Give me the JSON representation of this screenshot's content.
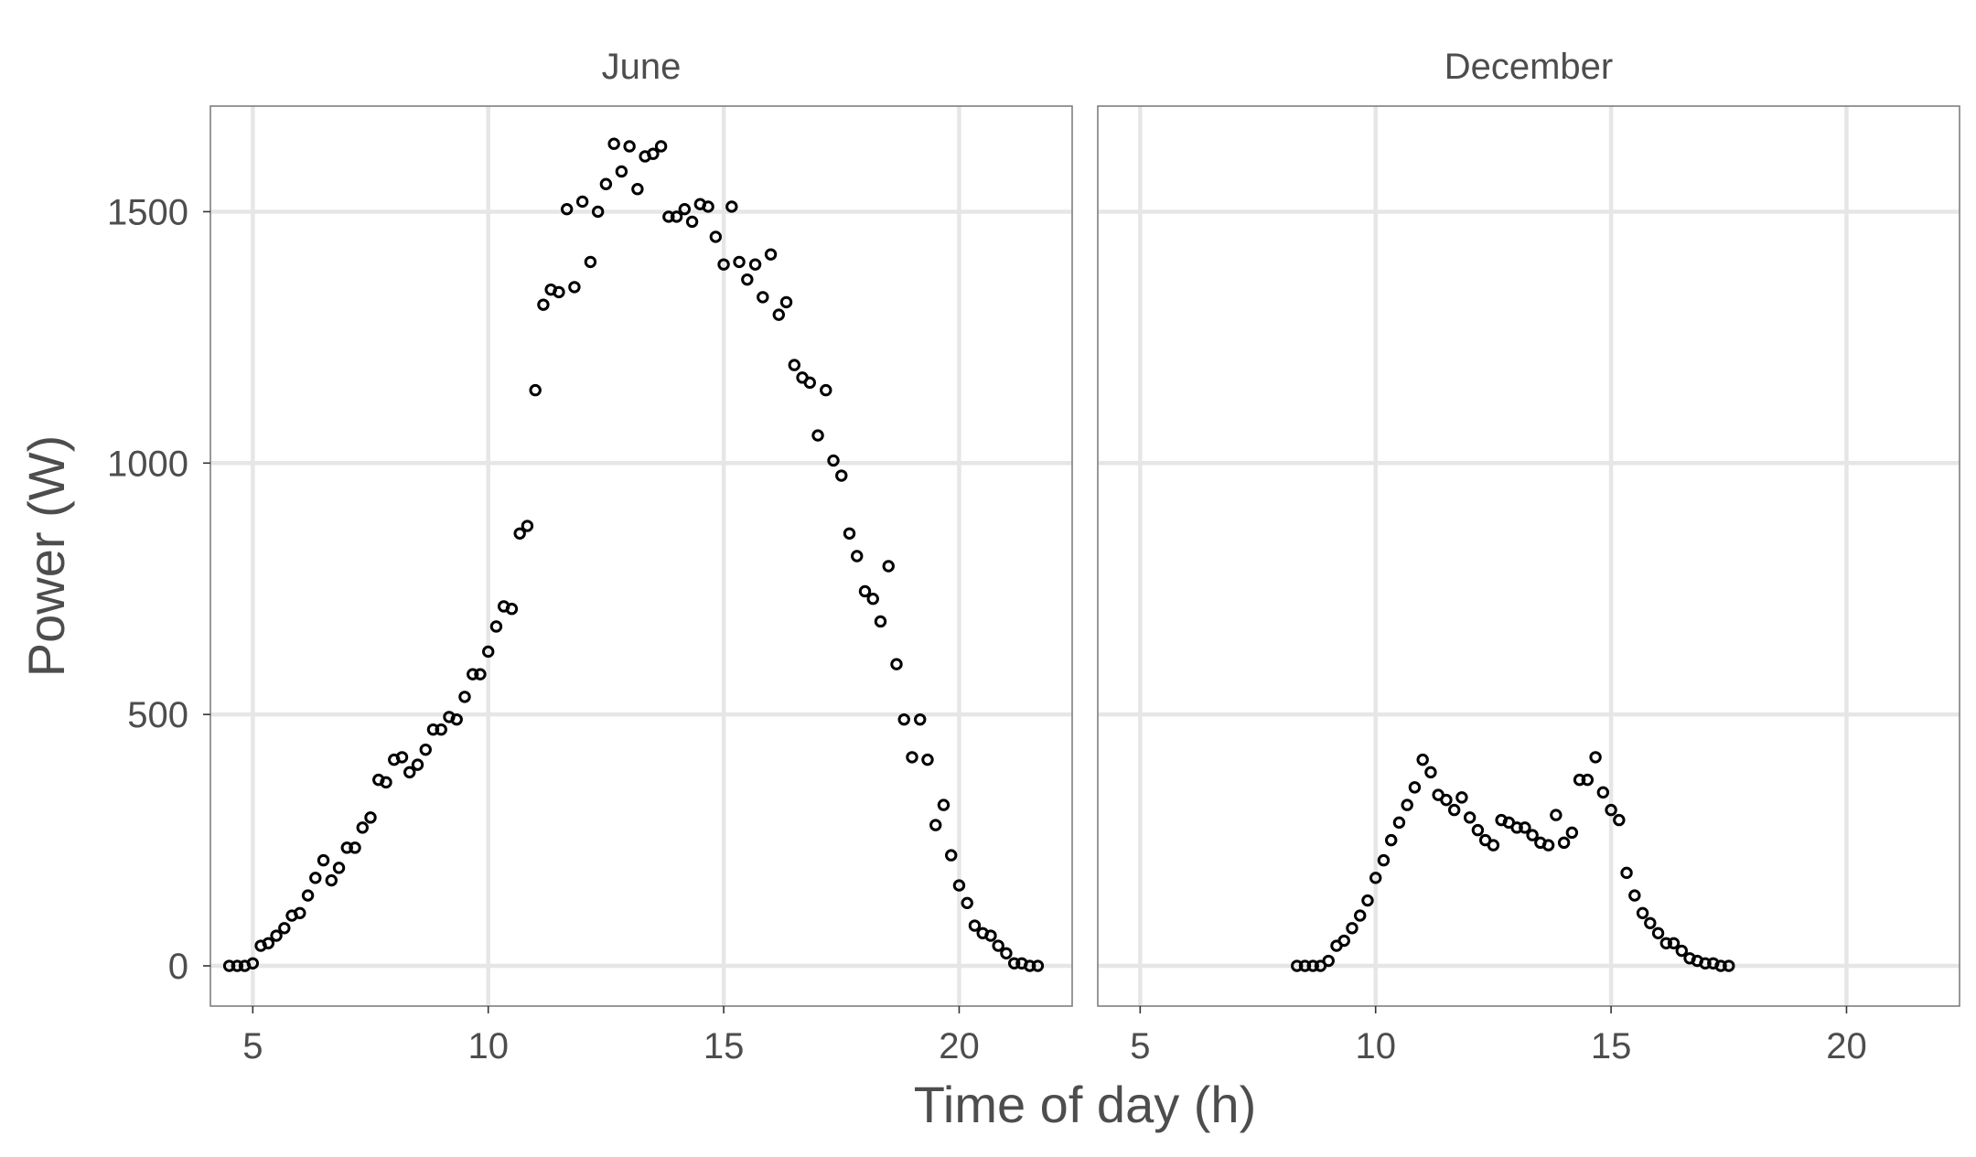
{
  "chart_data": {
    "type": "scatter",
    "xlabel": "Time of day (h)",
    "ylabel": "Power (W)",
    "xlim": [
      4.1,
      22.4
    ],
    "ylim": [
      -80,
      1710
    ],
    "xticks": [
      5,
      10,
      15,
      20
    ],
    "yticks": [
      0,
      500,
      1000,
      1500
    ],
    "grid": true,
    "legend": "none",
    "colors": {
      "points": "#000000",
      "grid": "#e6e6e6",
      "border": "#7f7f7f",
      "text": "#4d4d4d"
    },
    "panels": [
      {
        "name": "June",
        "x": [
          4.5,
          4.67,
          4.83,
          5.0,
          5.17,
          5.33,
          5.5,
          5.67,
          5.83,
          6.0,
          6.17,
          6.33,
          6.5,
          6.67,
          6.83,
          7.0,
          7.17,
          7.33,
          7.5,
          7.67,
          7.83,
          8.0,
          8.17,
          8.33,
          8.5,
          8.67,
          8.83,
          9.0,
          9.17,
          9.33,
          9.5,
          9.67,
          9.83,
          10.0,
          10.17,
          10.33,
          10.5,
          10.67,
          10.83,
          11.0,
          11.17,
          11.33,
          11.5,
          11.67,
          11.83,
          12.0,
          12.17,
          12.33,
          12.5,
          12.67,
          12.83,
          13.0,
          13.17,
          13.33,
          13.5,
          13.67,
          13.83,
          14.0,
          14.17,
          14.33,
          14.5,
          14.67,
          14.83,
          15.0,
          15.17,
          15.33,
          15.5,
          15.67,
          15.83,
          16.0,
          16.17,
          16.33,
          16.5,
          16.67,
          16.83,
          17.0,
          17.17,
          17.33,
          17.5,
          17.67,
          17.83,
          18.0,
          18.17,
          18.33,
          18.5,
          18.67,
          18.83,
          19.0,
          19.17,
          19.33,
          19.5,
          19.67,
          19.83,
          20.0,
          20.17,
          20.33,
          20.5,
          20.67,
          20.83,
          21.0,
          21.17,
          21.33,
          21.5,
          21.67
        ],
        "y": [
          0,
          0,
          0,
          5,
          40,
          45,
          60,
          75,
          100,
          105,
          140,
          175,
          210,
          170,
          195,
          235,
          235,
          275,
          295,
          370,
          365,
          410,
          415,
          385,
          400,
          430,
          470,
          470,
          495,
          490,
          535,
          580,
          580,
          625,
          675,
          715,
          710,
          860,
          875,
          1145,
          1315,
          1345,
          1340,
          1505,
          1350,
          1520,
          1400,
          1500,
          1555,
          1635,
          1580,
          1630,
          1545,
          1610,
          1615,
          1630,
          1490,
          1490,
          1505,
          1480,
          1515,
          1510,
          1450,
          1395,
          1510,
          1400,
          1365,
          1395,
          1330,
          1415,
          1295,
          1320,
          1195,
          1170,
          1160,
          1055,
          1145,
          1005,
          975,
          860,
          815,
          745,
          730,
          685,
          795,
          600,
          490,
          415,
          490,
          410,
          280,
          320,
          220,
          160,
          125,
          80,
          65,
          60,
          40,
          25,
          5,
          5,
          0,
          0
        ]
      },
      {
        "name": "December",
        "x": [
          8.33,
          8.5,
          8.67,
          8.83,
          9.0,
          9.17,
          9.33,
          9.5,
          9.67,
          9.83,
          10.0,
          10.17,
          10.33,
          10.5,
          10.67,
          10.83,
          11.0,
          11.17,
          11.33,
          11.5,
          11.67,
          11.83,
          12.0,
          12.17,
          12.33,
          12.5,
          12.67,
          12.83,
          13.0,
          13.17,
          13.33,
          13.5,
          13.67,
          13.83,
          14.0,
          14.17,
          14.33,
          14.5,
          14.67,
          14.83,
          15.0,
          15.17,
          15.33,
          15.5,
          15.67,
          15.83,
          16.0,
          16.17,
          16.33,
          16.5,
          16.67,
          16.83,
          17.0,
          17.17,
          17.33,
          17.5
        ],
        "y": [
          0,
          0,
          0,
          0,
          10,
          40,
          50,
          75,
          100,
          130,
          175,
          210,
          250,
          285,
          320,
          355,
          410,
          385,
          340,
          330,
          310,
          335,
          295,
          270,
          250,
          240,
          290,
          285,
          275,
          275,
          260,
          245,
          240,
          300,
          245,
          265,
          370,
          370,
          415,
          345,
          310,
          290,
          185,
          140,
          105,
          85,
          65,
          45,
          45,
          30,
          15,
          10,
          5,
          5,
          0,
          0
        ]
      }
    ]
  }
}
